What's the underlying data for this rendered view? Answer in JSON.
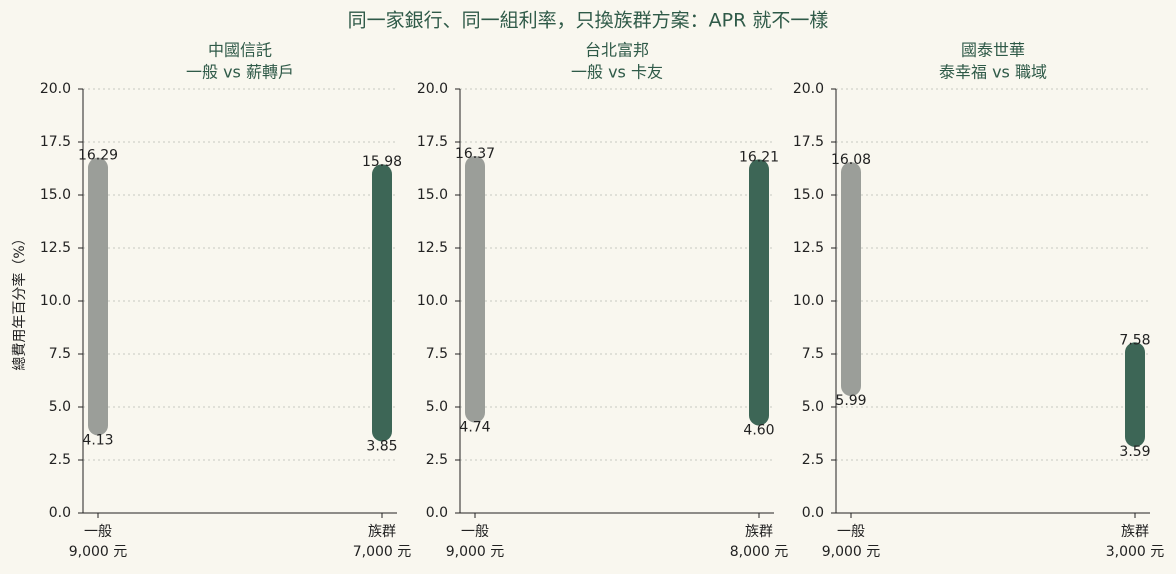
{
  "title": "同一家銀行、同一組利率，只換族群方案：APR 就不一樣",
  "chart_data": [
    {
      "type": "range-bar",
      "title": "中國信託",
      "subtitle": "一般 vs 薪轉戶",
      "ylabel": "總費用年百分率（%）",
      "categories": [
        "一般",
        "族群"
      ],
      "category_sublabels": [
        "9,000 元",
        "7,000 元"
      ],
      "low": [
        4.13,
        3.85
      ],
      "high": [
        16.29,
        15.98
      ],
      "low_labels": [
        "4.13",
        "3.85"
      ],
      "high_labels": [
        "16.29",
        "15.98"
      ],
      "colors": [
        "#9b9e99",
        "#3d6656"
      ],
      "high_label_color": "#b04a3a",
      "low_label_color": "#2f5a48",
      "ylim": [
        0,
        20
      ],
      "yticks": [
        {
          "value": 0,
          "label": "0.0"
        },
        2.5,
        {
          "value": 5,
          "label": "5.0"
        },
        7.5,
        {
          "value": 10,
          "label": "10.0"
        },
        12.5,
        {
          "value": 15,
          "label": "15.0"
        },
        17.5,
        {
          "value": 20,
          "label": "20.0"
        }
      ],
      "grid": true
    },
    {
      "type": "range-bar",
      "title": "台北富邦",
      "subtitle": "一般 vs 卡友",
      "categories": [
        "一般",
        "族群"
      ],
      "category_sublabels": [
        "9,000 元",
        "8,000 元"
      ],
      "low": [
        4.74,
        4.6
      ],
      "high": [
        16.37,
        16.21
      ],
      "low_labels": [
        "4.74",
        "4.60"
      ],
      "high_labels": [
        "16.37",
        "16.21"
      ],
      "colors": [
        "#9b9e99",
        "#3d6656"
      ],
      "high_label_color": "#b04a3a",
      "low_label_color": "#2f5a48",
      "ylim": [
        0,
        20
      ],
      "yticks": [
        {
          "value": 0,
          "label": "0.0"
        },
        2.5,
        {
          "value": 5,
          "label": "5.0"
        },
        7.5,
        {
          "value": 10,
          "label": "10.0"
        },
        12.5,
        {
          "value": 15,
          "label": "15.0"
        },
        17.5,
        {
          "value": 20,
          "label": "20.0"
        }
      ],
      "grid": true
    },
    {
      "type": "range-bar",
      "title": "國泰世華",
      "subtitle": "泰幸福 vs 職域",
      "categories": [
        "一般",
        "族群"
      ],
      "category_sublabels": [
        "9,000 元",
        "3,000 元"
      ],
      "low": [
        5.99,
        3.59
      ],
      "high": [
        16.08,
        7.58
      ],
      "low_labels": [
        "5.99",
        "3.59"
      ],
      "high_labels": [
        "16.08",
        "7.58"
      ],
      "colors": [
        "#9b9e99",
        "#3d6656"
      ],
      "high_label_color": "#b04a3a",
      "low_label_color": "#2f5a48",
      "ylim": [
        0,
        20
      ],
      "yticks": [
        {
          "value": 0,
          "label": "0.0"
        },
        2.5,
        {
          "value": 5,
          "label": "5.0"
        },
        7.5,
        {
          "value": 10,
          "label": "10.0"
        },
        12.5,
        {
          "value": 15,
          "label": "15.0"
        },
        17.5,
        {
          "value": 20,
          "label": "20.0"
        }
      ],
      "grid": true
    }
  ]
}
